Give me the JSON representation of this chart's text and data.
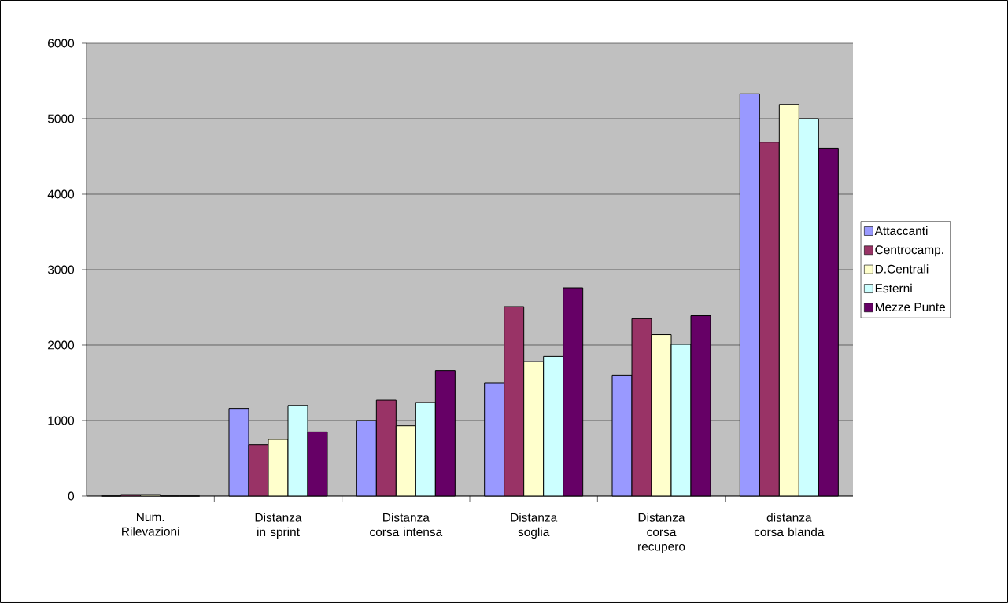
{
  "chart_data": {
    "type": "bar",
    "categories": [
      "Num. Rilevazioni",
      "Distanza in sprint",
      "Distanza corsa intensa",
      "Distanza soglia",
      "Distanza corsa recupero",
      "distanza corsa blanda"
    ],
    "series": [
      {
        "name": "Attaccanti",
        "color": "#9999ff",
        "values": [
          0,
          1160,
          1000,
          1500,
          1600,
          5330
        ]
      },
      {
        "name": "Centrocamp.",
        "color": "#993366",
        "values": [
          20,
          680,
          1270,
          2510,
          2350,
          4690
        ]
      },
      {
        "name": "D.Centrali",
        "color": "#ffffcc",
        "values": [
          20,
          750,
          930,
          1780,
          2140,
          5190
        ]
      },
      {
        "name": "Esterni",
        "color": "#ccffff",
        "values": [
          0,
          1200,
          1240,
          1850,
          2010,
          5000
        ]
      },
      {
        "name": "Mezze Punte",
        "color": "#660066",
        "values": [
          0,
          850,
          1660,
          2760,
          2390,
          4610
        ]
      }
    ],
    "ylim": [
      0,
      6000
    ],
    "yticks": [
      0,
      1000,
      2000,
      3000,
      4000,
      5000,
      6000
    ],
    "grid": "y",
    "legend": "right"
  }
}
